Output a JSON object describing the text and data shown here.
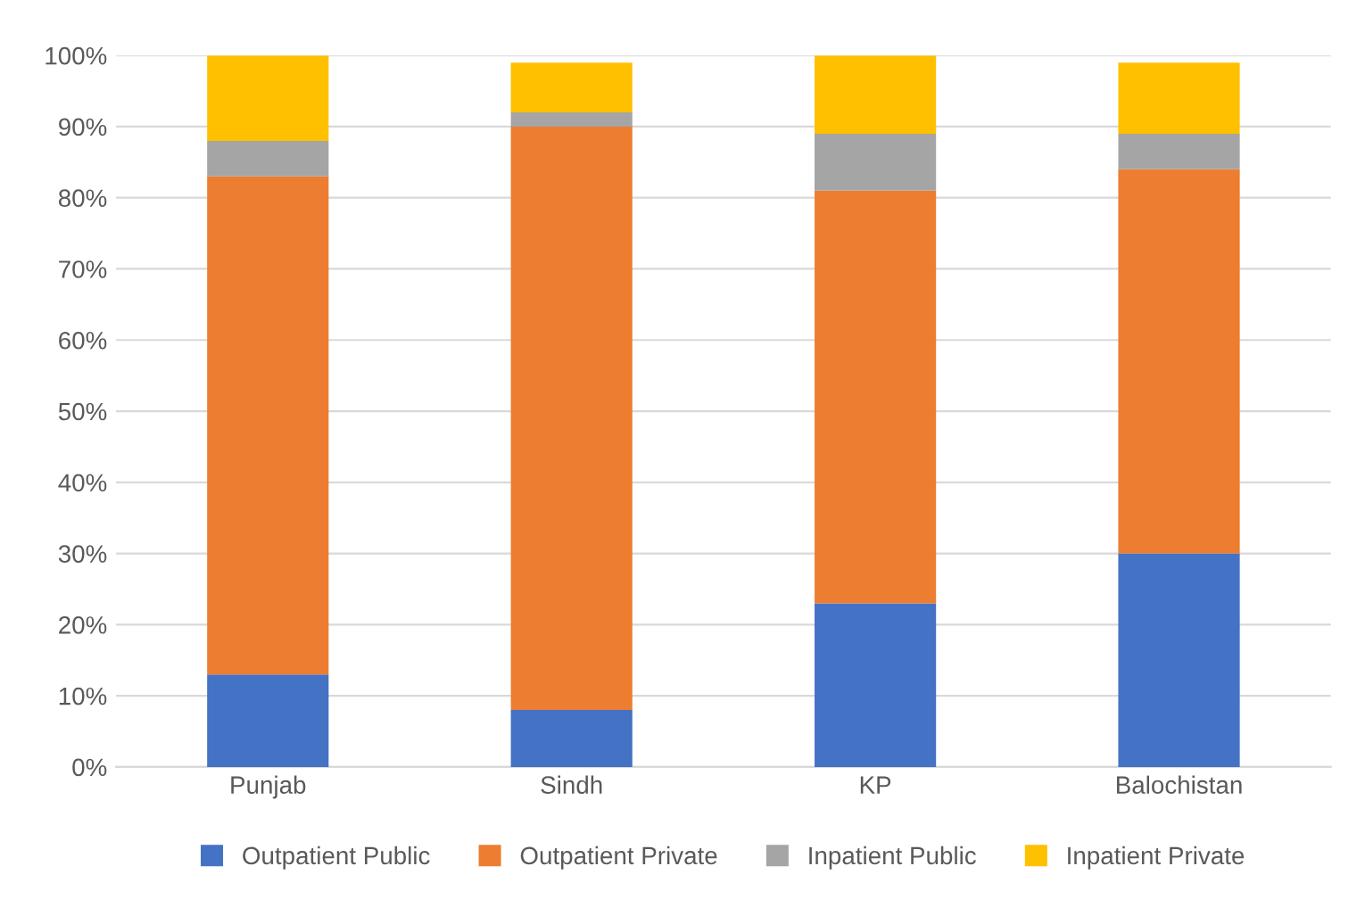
{
  "chart_data": {
    "type": "bar",
    "stacked": true,
    "categories": [
      "Punjab",
      "Sindh",
      "KP",
      "Balochistan"
    ],
    "series": [
      {
        "name": "Outpatient Public",
        "color": "#4472c4",
        "values": [
          13,
          8,
          23,
          30
        ]
      },
      {
        "name": "Outpatient Private",
        "color": "#ed7d31",
        "values": [
          70,
          82,
          58,
          54
        ]
      },
      {
        "name": "Inpatient Public",
        "color": "#a5a5a5",
        "values": [
          5,
          2,
          8,
          5
        ]
      },
      {
        "name": "Inpatient Private",
        "color": "#ffc000",
        "values": [
          12,
          7,
          11,
          10
        ]
      }
    ],
    "ylim": [
      0,
      100
    ],
    "yticks": [
      {
        "value": 0,
        "label": "0%"
      },
      {
        "value": 10,
        "label": "10%"
      },
      {
        "value": 20,
        "label": "20%"
      },
      {
        "value": 30,
        "label": "30%"
      },
      {
        "value": 40,
        "label": "40%"
      },
      {
        "value": 50,
        "label": "50%"
      },
      {
        "value": 60,
        "label": "60%"
      },
      {
        "value": 70,
        "label": "70%"
      },
      {
        "value": 80,
        "label": "80%"
      },
      {
        "value": 90,
        "label": "90%"
      },
      {
        "value": 100,
        "label": "100%"
      }
    ],
    "grid": "y",
    "legend": "bottom"
  }
}
